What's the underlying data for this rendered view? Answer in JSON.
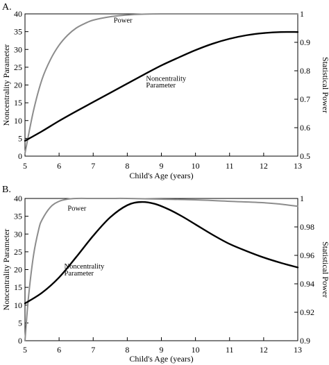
{
  "chart_data": [
    {
      "panel_label": "A.",
      "type": "line",
      "xlabel": "Child's Age (years)",
      "ylabel": "Noncentrality Parameter",
      "y2label": "Statistical Power",
      "xlim": [
        5,
        13
      ],
      "ylim": [
        0,
        40
      ],
      "y2lim": [
        0.5,
        1.0
      ],
      "x_ticks": [
        5,
        6,
        7,
        8,
        9,
        10,
        11,
        12,
        13
      ],
      "y_ticks": [
        0,
        5,
        10,
        15,
        20,
        25,
        30,
        35,
        40
      ],
      "y2_ticks": [
        0.5,
        0.6,
        0.7,
        0.8,
        0.9,
        1.0
      ],
      "y2_tick_labels": [
        "0.5",
        "0.6",
        "0.7",
        "0.8",
        "0.9",
        "1"
      ],
      "grid": false,
      "series": [
        {
          "name": "Power",
          "axis": "right",
          "color": "#8c8c8c",
          "x": [
            5,
            5.25,
            5.5,
            5.75,
            6,
            6.25,
            6.5,
            6.75,
            7,
            7.5,
            8,
            8.5,
            9,
            10,
            11,
            12,
            13
          ],
          "y": [
            0.51,
            0.66,
            0.77,
            0.84,
            0.89,
            0.925,
            0.95,
            0.966,
            0.978,
            0.99,
            0.996,
            0.999,
            1.0,
            1.0,
            1.0,
            1.0,
            1.0
          ]
        },
        {
          "name": "Noncentrality Parameter",
          "axis": "left",
          "color": "#000000",
          "x": [
            5,
            5.5,
            6,
            6.5,
            7,
            7.5,
            8,
            8.5,
            9,
            9.5,
            10,
            10.5,
            11,
            11.5,
            12,
            12.5,
            13
          ],
          "y": [
            4.3,
            7.0,
            9.9,
            12.6,
            15.2,
            17.8,
            20.4,
            23.0,
            25.5,
            27.7,
            29.8,
            31.6,
            33.0,
            34.0,
            34.6,
            34.9,
            34.9
          ]
        }
      ],
      "annotations": [
        {
          "text": "Power",
          "x": 7.6,
          "y": 37.6
        },
        {
          "text": "Noncentrality",
          "x": 8.55,
          "y": 21.2
        },
        {
          "text": "Parameter",
          "x": 8.55,
          "y": 19.3
        }
      ]
    },
    {
      "panel_label": "B.",
      "type": "line",
      "xlabel": "Child's Age (years)",
      "ylabel": "Noncentrality Parameter",
      "y2label": "Statistical Power",
      "xlim": [
        5,
        13
      ],
      "ylim": [
        0,
        40
      ],
      "y2lim": [
        0.9,
        1.0
      ],
      "x_ticks": [
        5,
        6,
        7,
        8,
        9,
        10,
        11,
        12,
        13
      ],
      "y_ticks": [
        0,
        5,
        10,
        15,
        20,
        25,
        30,
        35,
        40
      ],
      "y2_ticks": [
        0.9,
        0.92,
        0.94,
        0.96,
        0.98,
        1.0
      ],
      "y2_tick_labels": [
        "0.9",
        "0.92",
        "0.94",
        "0.96",
        "0.98",
        "1"
      ],
      "grid": false,
      "series": [
        {
          "name": "Power",
          "axis": "right",
          "color": "#8c8c8c",
          "x": [
            5,
            5.1,
            5.25,
            5.4,
            5.5,
            5.75,
            6,
            6.25,
            6.5,
            7,
            7.5,
            8,
            9,
            10,
            11,
            12,
            12.5,
            13
          ],
          "y": [
            0.9,
            0.93,
            0.96,
            0.978,
            0.985,
            0.994,
            0.998,
            0.9995,
            1.0,
            1.0,
            1.0,
            1.0,
            0.9995,
            0.999,
            0.998,
            0.997,
            0.996,
            0.9945
          ]
        },
        {
          "name": "Noncentrality Parameter",
          "axis": "left",
          "color": "#000000",
          "x": [
            5,
            5.5,
            6,
            6.5,
            7,
            7.5,
            8,
            8.4,
            8.8,
            9.2,
            9.6,
            10,
            10.5,
            11,
            11.5,
            12,
            12.5,
            13
          ],
          "y": [
            10.5,
            13.5,
            17.8,
            23.5,
            29.5,
            34.7,
            38.1,
            39.0,
            38.5,
            37.0,
            35.0,
            32.7,
            29.8,
            27.2,
            25.2,
            23.4,
            21.9,
            20.6
          ]
        }
      ],
      "annotations": [
        {
          "text": "Power",
          "x": 6.25,
          "y": 36.6
        },
        {
          "text": "Noncentrality",
          "x": 6.15,
          "y": 20.3
        },
        {
          "text": "Parameter",
          "x": 6.15,
          "y": 18.3
        }
      ]
    }
  ]
}
